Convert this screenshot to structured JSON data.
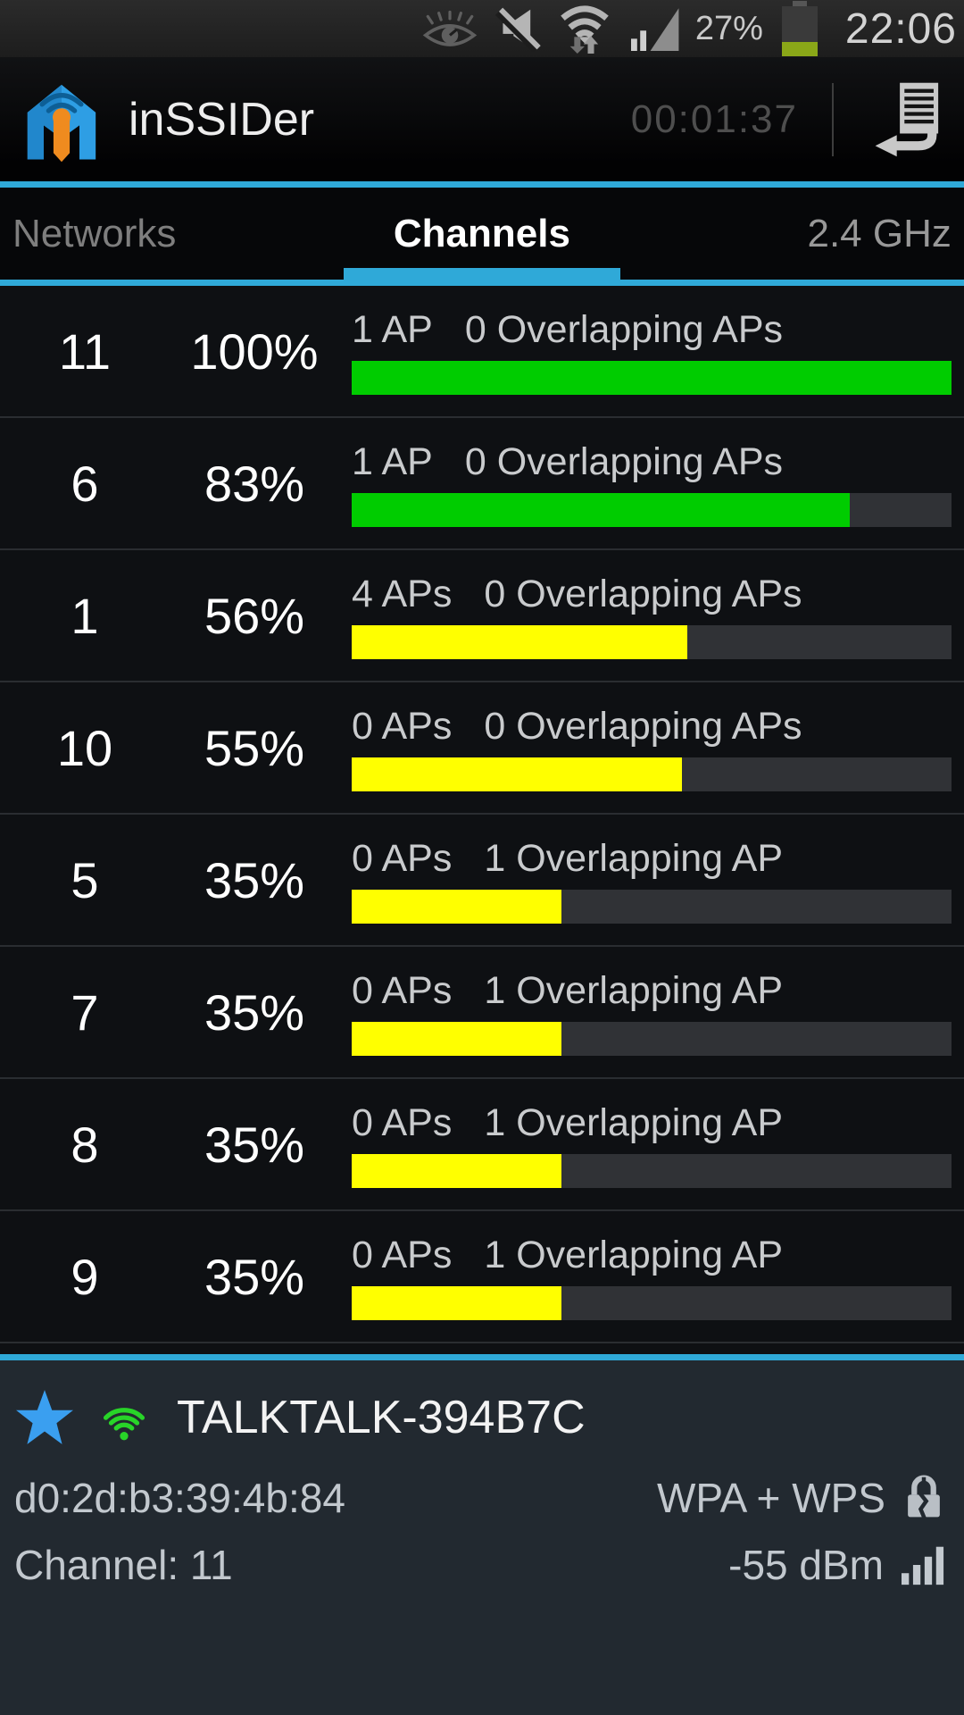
{
  "status_bar": {
    "battery_percent": "27%",
    "time": "22:06"
  },
  "app_bar": {
    "title": "inSSIDer",
    "timer": "00:01:37"
  },
  "tabs": {
    "networks": "Networks",
    "channels": "Channels",
    "band": "2.4 GHz"
  },
  "channels": [
    {
      "channel": "11",
      "percent": "100%",
      "aps": "1 AP",
      "overlap": "0 Overlapping APs",
      "fill": 100,
      "color": "green"
    },
    {
      "channel": "6",
      "percent": "83%",
      "aps": "1 AP",
      "overlap": "0 Overlapping APs",
      "fill": 83,
      "color": "green"
    },
    {
      "channel": "1",
      "percent": "56%",
      "aps": "4 APs",
      "overlap": "0 Overlapping APs",
      "fill": 56,
      "color": "yellow"
    },
    {
      "channel": "10",
      "percent": "55%",
      "aps": "0 APs",
      "overlap": "0 Overlapping APs",
      "fill": 55,
      "color": "yellow"
    },
    {
      "channel": "5",
      "percent": "35%",
      "aps": "0 APs",
      "overlap": "1 Overlapping AP",
      "fill": 35,
      "color": "yellow"
    },
    {
      "channel": "7",
      "percent": "35%",
      "aps": "0 APs",
      "overlap": "1 Overlapping AP",
      "fill": 35,
      "color": "yellow"
    },
    {
      "channel": "8",
      "percent": "35%",
      "aps": "0 APs",
      "overlap": "1 Overlapping AP",
      "fill": 35,
      "color": "yellow"
    },
    {
      "channel": "9",
      "percent": "35%",
      "aps": "0 APs",
      "overlap": "1 Overlapping AP",
      "fill": 35,
      "color": "yellow"
    }
  ],
  "selected_network": {
    "ssid": "TALKTALK-394B7C",
    "mac": "d0:2d:b3:39:4b:84",
    "security": "WPA + WPS",
    "channel": "Channel: 11",
    "signal": "-55 dBm"
  },
  "colors": {
    "accent_cyan": "#2fa9d8",
    "bar_green": "#00cc00",
    "bar_yellow": "#ffff00",
    "bar_track": "#303236",
    "battery_green": "#8aa718",
    "star_blue": "#3a9ff0",
    "wifi_green": "#28d428"
  }
}
